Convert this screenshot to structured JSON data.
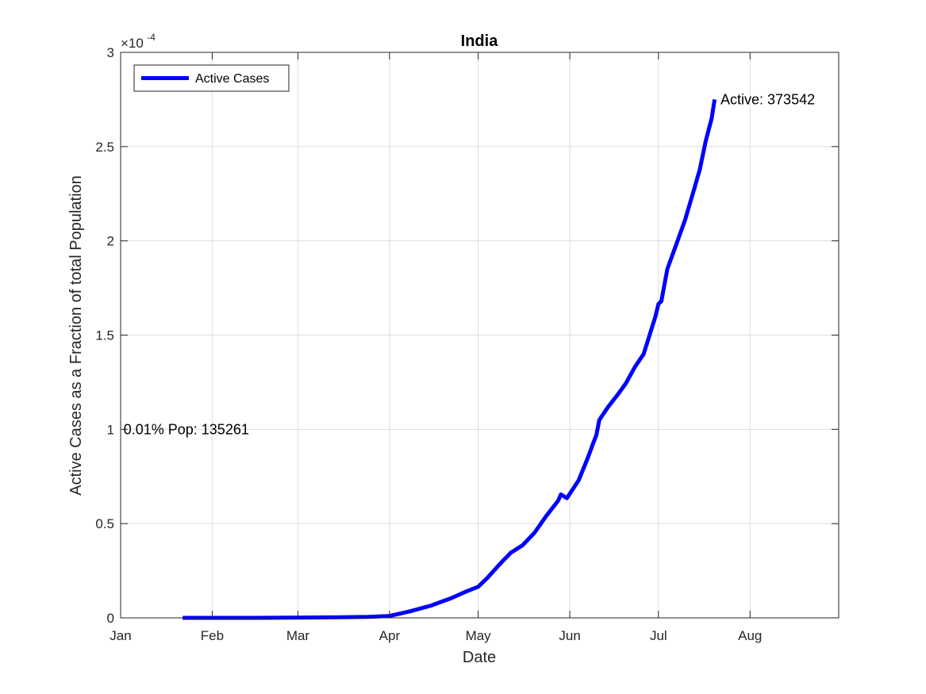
{
  "chart_data": {
    "type": "line",
    "title": "India",
    "xlabel": "Date",
    "ylabel": "Active Cases as a Fraction of total Population",
    "y_exponent_base": "×10",
    "y_exponent_power": "-4",
    "xlim": [
      "2020-01-01",
      "2020-08-31"
    ],
    "ylim": [
      0,
      3
    ],
    "x_ticks": [
      {
        "date": "2020-01-01",
        "label": "Jan"
      },
      {
        "date": "2020-02-01",
        "label": "Feb"
      },
      {
        "date": "2020-03-01",
        "label": "Mar"
      },
      {
        "date": "2020-04-01",
        "label": "Apr"
      },
      {
        "date": "2020-05-01",
        "label": "May"
      },
      {
        "date": "2020-06-01",
        "label": "Jun"
      },
      {
        "date": "2020-07-01",
        "label": "Jul"
      },
      {
        "date": "2020-08-01",
        "label": "Aug"
      }
    ],
    "y_ticks": [
      {
        "value": 0,
        "label": "0"
      },
      {
        "value": 0.5,
        "label": "0.5"
      },
      {
        "value": 1,
        "label": "1"
      },
      {
        "value": 1.5,
        "label": "1.5"
      },
      {
        "value": 2,
        "label": "2"
      },
      {
        "value": 2.5,
        "label": "2.5"
      },
      {
        "value": 3,
        "label": "3"
      }
    ],
    "grid": true,
    "legend_location": "top-left",
    "series": [
      {
        "name": "Active Cases",
        "color": "#0000ff",
        "x": [
          "2020-01-22",
          "2020-02-15",
          "2020-03-15",
          "2020-03-25",
          "2020-04-01",
          "2020-04-08",
          "2020-04-15",
          "2020-04-22",
          "2020-04-27",
          "2020-05-01",
          "2020-05-04",
          "2020-05-08",
          "2020-05-12",
          "2020-05-16",
          "2020-05-20",
          "2020-05-24",
          "2020-05-28",
          "2020-05-29",
          "2020-05-31",
          "2020-06-04",
          "2020-06-07",
          "2020-06-09",
          "2020-06-10",
          "2020-06-11",
          "2020-06-14",
          "2020-06-17",
          "2020-06-20",
          "2020-06-23",
          "2020-06-26",
          "2020-06-30",
          "2020-07-01",
          "2020-07-02",
          "2020-07-04",
          "2020-07-07",
          "2020-07-10",
          "2020-07-13",
          "2020-07-15",
          "2020-07-17",
          "2020-07-19",
          "2020-07-20"
        ],
        "y": [
          0,
          0,
          0.003,
          0.005,
          0.01,
          0.035,
          0.065,
          0.105,
          0.14,
          0.165,
          0.21,
          0.28,
          0.345,
          0.385,
          0.45,
          0.54,
          0.62,
          0.655,
          0.635,
          0.73,
          0.845,
          0.93,
          0.97,
          1.05,
          1.12,
          1.18,
          1.245,
          1.33,
          1.4,
          1.6,
          1.665,
          1.68,
          1.85,
          1.98,
          2.11,
          2.27,
          2.38,
          2.53,
          2.65,
          2.75
        ]
      }
    ],
    "annotations": [
      {
        "text": "Active: 373542",
        "x": "2020-07-22",
        "y": 2.75
      },
      {
        "text": "0.01% Pop: 135261",
        "x": "2020-01-02",
        "y": 1.0
      }
    ]
  }
}
